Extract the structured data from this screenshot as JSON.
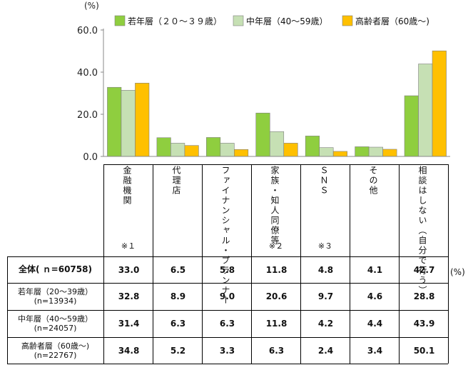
{
  "chart_data": {
    "type": "bar",
    "y_unit": "(%)",
    "ylim": [
      0,
      60
    ],
    "yticks": [
      "0.0",
      "20.0",
      "40.0",
      "60.0"
    ],
    "categories": [
      "金融機関",
      "代理店",
      "ファイナンシャル・プランナー",
      "家族・知人同僚等",
      "ＳＮＳ",
      "その他",
      "相談はしない（自分で行う）"
    ],
    "category_notes": [
      "※１",
      "",
      "",
      "※２",
      "※３",
      "",
      ""
    ],
    "series": [
      {
        "name": "若年層（２０～３９歳）",
        "color": "#8fce3f",
        "values": [
          32.8,
          8.9,
          9.0,
          20.6,
          9.7,
          4.6,
          28.8
        ]
      },
      {
        "name": "中年層（40～59歳）",
        "color": "#c6e0b4",
        "values": [
          31.4,
          6.3,
          6.3,
          11.8,
          4.2,
          4.4,
          43.9
        ]
      },
      {
        "name": "高齢者層（60歳～)",
        "color": "#ffc000",
        "values": [
          34.8,
          5.2,
          3.3,
          6.3,
          2.4,
          3.4,
          50.1
        ]
      }
    ],
    "legend_position": "top",
    "grid": false
  },
  "table": {
    "unit": "(%)",
    "rows": [
      {
        "label": "全体( ｎ=60758)",
        "label2": "",
        "values": [
          "33.0",
          "6.5",
          "5.8",
          "11.8",
          "4.8",
          "4.1",
          "42.7"
        ]
      },
      {
        "label": "若年層（20～39歳）",
        "label2": "(n=13934)",
        "values": [
          "32.8",
          "8.9",
          "9.0",
          "20.6",
          "9.7",
          "4.6",
          "28.8"
        ]
      },
      {
        "label": "中年層（40～59歳）",
        "label2": "(n=24057)",
        "values": [
          "31.4",
          "6.3",
          "6.3",
          "11.8",
          "4.2",
          "4.4",
          "43.9"
        ]
      },
      {
        "label": "高齢者層（60歳～)",
        "label2": "(n=22767)",
        "values": [
          "34.8",
          "5.2",
          "3.3",
          "6.3",
          "2.4",
          "3.4",
          "50.1"
        ]
      }
    ]
  }
}
